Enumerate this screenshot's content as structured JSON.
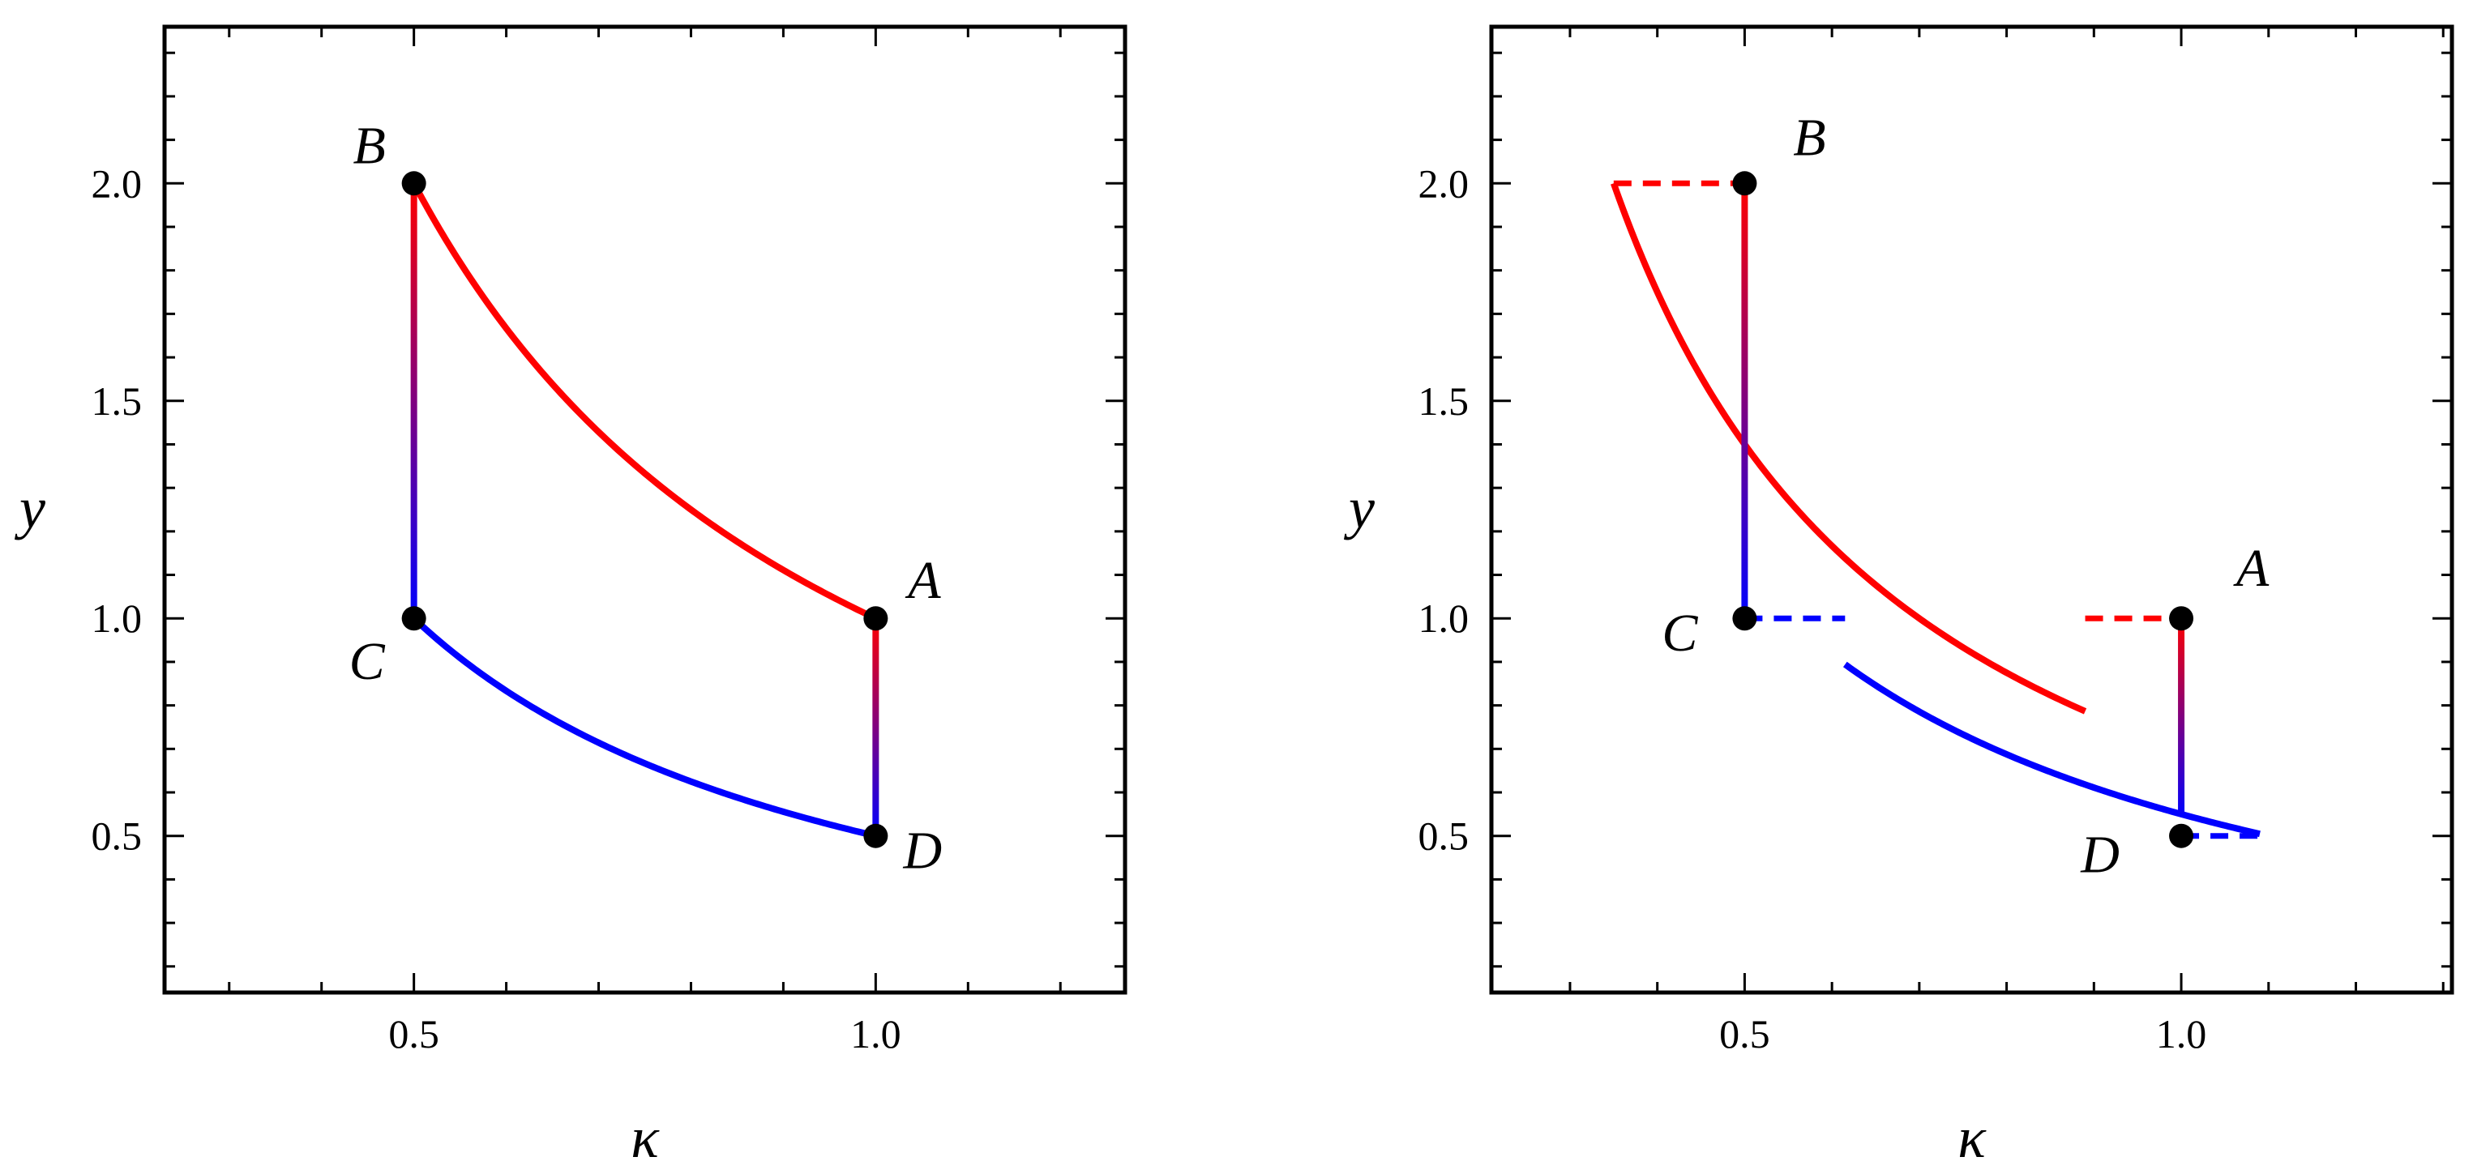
{
  "colors": {
    "hot": "#ff0000",
    "cold": "#0000ff",
    "frame": "#000000",
    "point": "#000000"
  },
  "chart_data": [
    {
      "type": "line",
      "xlabel": "κ",
      "ylabel": "y",
      "xlim": [
        0.23,
        1.27
      ],
      "ylim": [
        0.14,
        2.36
      ],
      "xticks": [
        {
          "value": 0.5,
          "label": "0.5"
        },
        {
          "value": 1.0,
          "label": "1.0"
        }
      ],
      "yticks": [
        {
          "value": 0.5,
          "label": "0.5"
        },
        {
          "value": 1.0,
          "label": "1.0"
        },
        {
          "value": 1.5,
          "label": "1.5"
        },
        {
          "value": 2.0,
          "label": "2.0"
        }
      ],
      "grid": false,
      "points": [
        {
          "label": "A",
          "x": 1.0,
          "y": 1.0
        },
        {
          "label": "B",
          "x": 0.5,
          "y": 2.0
        },
        {
          "label": "C",
          "x": 0.5,
          "y": 1.0
        },
        {
          "label": "D",
          "x": 1.0,
          "y": 0.5
        }
      ],
      "curves": [
        {
          "kind": "hyperbola",
          "k": 1.0,
          "x_range": [
            0.5,
            1.0
          ],
          "color": "hot",
          "style": "solid"
        },
        {
          "kind": "hyperbola",
          "k": 0.5,
          "x_range": [
            0.5,
            1.0
          ],
          "color": "cold",
          "style": "solid"
        }
      ],
      "gradient_segments": [
        {
          "from": [
            0.5,
            2.0
          ],
          "to": [
            0.5,
            1.0
          ],
          "color_from": "hot",
          "color_to": "cold"
        },
        {
          "from": [
            1.0,
            1.0
          ],
          "to": [
            1.0,
            0.5
          ],
          "color_from": "hot",
          "color_to": "cold"
        }
      ],
      "dashed_segments": []
    },
    {
      "type": "line",
      "xlabel": "κ",
      "ylabel": "y",
      "xlim": [
        0.21,
        1.31
      ],
      "ylim": [
        0.14,
        2.36
      ],
      "xticks": [
        {
          "value": 0.5,
          "label": "0.5"
        },
        {
          "value": 1.0,
          "label": "1.0"
        }
      ],
      "yticks": [
        {
          "value": 0.5,
          "label": "0.5"
        },
        {
          "value": 1.0,
          "label": "1.0"
        },
        {
          "value": 1.5,
          "label": "1.5"
        },
        {
          "value": 2.0,
          "label": "2.0"
        }
      ],
      "grid": false,
      "points": [
        {
          "label": "A",
          "x": 1.0,
          "y": 1.0
        },
        {
          "label": "B",
          "x": 0.5,
          "y": 2.0
        },
        {
          "label": "C",
          "x": 0.5,
          "y": 1.0
        },
        {
          "label": "D",
          "x": 1.0,
          "y": 0.5
        }
      ],
      "curves": [
        {
          "kind": "hyperbola",
          "k": 0.7,
          "x_range": [
            0.35,
            0.89
          ],
          "color": "hot",
          "style": "solid"
        },
        {
          "kind": "hyperbola",
          "k": 0.55,
          "x_range": [
            0.615,
            1.09
          ],
          "color": "cold",
          "style": "solid"
        }
      ],
      "gradient_segments": [
        {
          "from": [
            0.5,
            2.0
          ],
          "to": [
            0.5,
            1.0
          ],
          "color_from": "hot",
          "color_to": "cold"
        },
        {
          "from": [
            1.0,
            1.0
          ],
          "to": [
            1.0,
            0.545
          ],
          "color_from": "hot",
          "color_to": "cold"
        }
      ],
      "dashed_segments": [
        {
          "from": [
            0.35,
            2.0
          ],
          "to": [
            0.5,
            2.0
          ],
          "color": "hot"
        },
        {
          "from": [
            0.89,
            1.0
          ],
          "to": [
            1.0,
            1.0
          ],
          "color": "hot"
        },
        {
          "from": [
            0.5,
            1.0
          ],
          "to": [
            0.615,
            1.0
          ],
          "color": "cold"
        },
        {
          "from": [
            1.0,
            0.5
          ],
          "to": [
            1.09,
            0.5
          ],
          "color": "cold"
        }
      ]
    }
  ]
}
